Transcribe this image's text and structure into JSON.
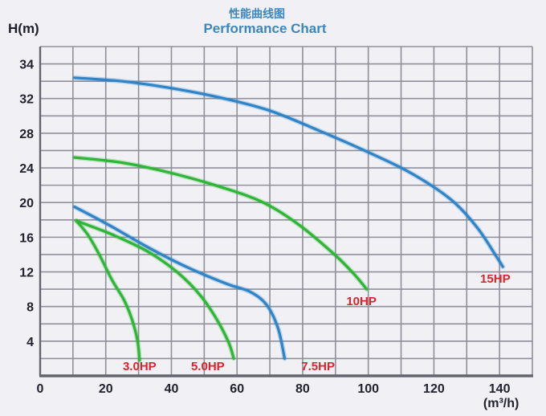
{
  "header": {
    "title_cn": "性能曲线图",
    "title_en": "Performance Chart",
    "y_axis_unit_label": "H(m)"
  },
  "colors": {
    "background": "#f1f1f5",
    "grid": "#8f8f9b",
    "axis": "#64646f",
    "tick_text": "#22222e",
    "title_blue": "#3b87bd",
    "curve_blue": "#2e84c6",
    "curve_green": "#2db535",
    "hp_label_red": "#d8252b"
  },
  "chart_data": {
    "type": "line",
    "title": "性能曲线图",
    "subtitle": "Performance Chart",
    "ylabel": "H(m)",
    "xlabel": "(m³/h)",
    "grid": true,
    "x_axis": {
      "min": 0,
      "max": 150,
      "grid_step": 10,
      "tick_labels": [
        "0",
        "20",
        "40",
        "60",
        "80",
        "100",
        "120",
        "140"
      ],
      "tick_label_step": 20,
      "unit_label": "(m³/h)",
      "unit_label_x": 140
    },
    "y_axis": {
      "min": 0,
      "max": 38,
      "grid_step": 2,
      "tick_labels": [
        "34",
        "32",
        "28",
        "24",
        "20",
        "16",
        "12",
        "8",
        "4"
      ],
      "tick_label_row_start": 1,
      "tick_label_row_step": 2
    },
    "series": [
      {
        "name": "15HP",
        "color_key": "curve_blue",
        "points": [
          [
            10.5,
            34.4
          ],
          [
            25,
            34.0
          ],
          [
            40,
            33.2
          ],
          [
            55,
            32.1
          ],
          [
            70,
            30.6
          ],
          [
            85,
            28.3
          ],
          [
            100,
            25.8
          ],
          [
            113,
            23.4
          ],
          [
            125,
            20.4
          ],
          [
            133,
            17.2
          ],
          [
            139,
            13.8
          ],
          [
            141,
            12.6
          ]
        ],
        "label": "15HP",
        "label_pos": [
          138.7,
          11.2
        ]
      },
      {
        "name": "10HP",
        "color_key": "curve_green",
        "points": [
          [
            10.5,
            25.2
          ],
          [
            25,
            24.6
          ],
          [
            40,
            23.4
          ],
          [
            55,
            21.8
          ],
          [
            68,
            20.0
          ],
          [
            79,
            17.4
          ],
          [
            90,
            13.9
          ],
          [
            96,
            11.6
          ],
          [
            99.5,
            10.0
          ]
        ],
        "label": "10HP",
        "label_pos": [
          97.9,
          8.6
        ]
      },
      {
        "name": "7.5HP",
        "color_key": "curve_blue",
        "points": [
          [
            10.5,
            19.5
          ],
          [
            21,
            17.4
          ],
          [
            33,
            14.8
          ],
          [
            45,
            12.5
          ],
          [
            57,
            10.6
          ],
          [
            64,
            9.7
          ],
          [
            69,
            8.2
          ],
          [
            72.5,
            5.5
          ],
          [
            74.5,
            2.0
          ]
        ],
        "label": "7.5HP",
        "label_pos": [
          84.7,
          1.1
        ]
      },
      {
        "name": "5.0HP",
        "color_key": "curve_green",
        "points": [
          [
            11,
            17.9
          ],
          [
            22,
            16.3
          ],
          [
            33,
            14.3
          ],
          [
            42,
            11.9
          ],
          [
            49,
            9.2
          ],
          [
            54,
            6.4
          ],
          [
            57.5,
            3.8
          ],
          [
            59,
            2.0
          ]
        ],
        "label": "5.0HP",
        "label_pos": [
          51.1,
          1.1
        ]
      },
      {
        "name": "3.0HP",
        "color_key": "curve_green",
        "points": [
          [
            11,
            17.9
          ],
          [
            14.5,
            16.3
          ],
          [
            18,
            14.0
          ],
          [
            22,
            11.0
          ],
          [
            25.5,
            8.8
          ],
          [
            28,
            6.5
          ],
          [
            29.7,
            4.0
          ],
          [
            30.3,
            1.8
          ]
        ],
        "label": "3.0HP",
        "label_pos": [
          30.3,
          1.1
        ]
      }
    ],
    "legend": "labels drawn in red next to each curve end"
  }
}
